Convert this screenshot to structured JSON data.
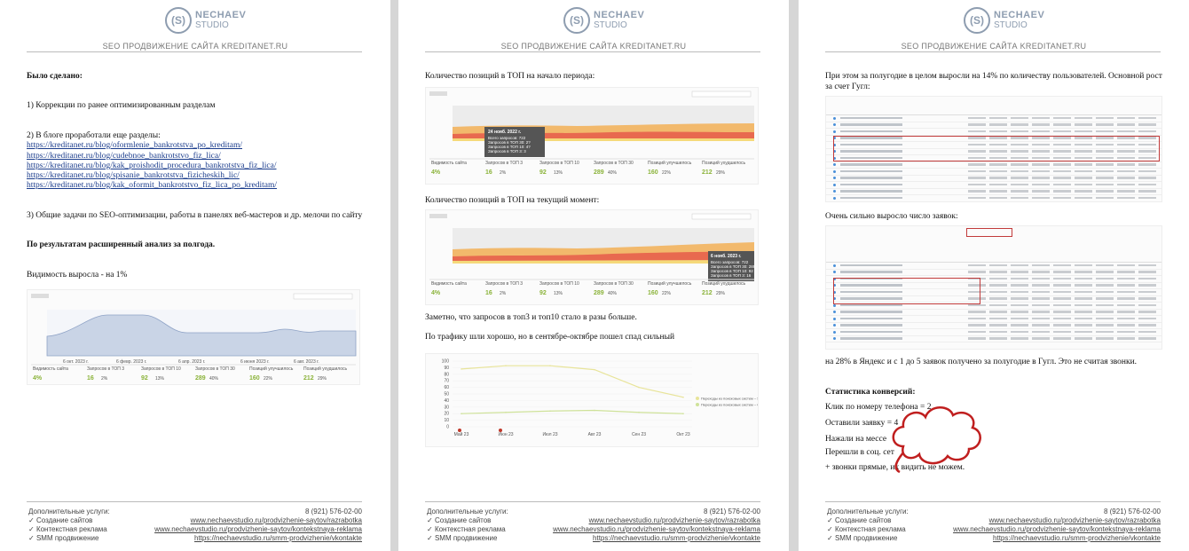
{
  "brand": {
    "logo_mark": "(S)",
    "logo_line1": "NECHAEV",
    "logo_line2": "STUDIO",
    "header": "SEO ПРОДВИЖЕНИЕ САЙТА KREDITANET.RU"
  },
  "footer": {
    "label": "Дополнительные услуги:",
    "phone": "8 (921) 576-02-00",
    "items": [
      {
        "check": "✓",
        "label": "Создание сайтов",
        "url": "www.nechaevstudio.ru/prodvizhenie-saytov/razrabotka"
      },
      {
        "check": "✓",
        "label": "Контекстная реклама",
        "url": "www.nechaevstudio.ru/prodvizhenie-saytov/kontekstnaya-reklama"
      },
      {
        "check": "✓",
        "label": "SMM продвижение",
        "url": "https://nechaevstudio.ru/smm-prodvizhenie/vkontakte"
      }
    ]
  },
  "metrics": {
    "labels": [
      "Видимость сайта",
      "Запросов в ТОП 3",
      "Запросов в ТОП 10",
      "Запросов в ТОП 30",
      "Позиций улучшилось",
      "Позиций ухудшилось"
    ],
    "values": [
      "4%",
      "16",
      "92",
      "289",
      "160",
      "212"
    ],
    "pcts": [
      "",
      "2%",
      "13%",
      "40%",
      "22%",
      "29%"
    ]
  },
  "page1": {
    "title": "Было сделано:",
    "item1": "1) Коррекции по ранее оптимизированным разделам",
    "item2": "2) В блоге проработали еще разделы:",
    "links": [
      "https://kreditanet.ru/blog/oformlenie_bankrotstva_po_kreditam/",
      "https://kreditanet.ru/blog/cudebnoe_bankrotstvo_fiz_lica/",
      "https://kreditanet.ru/blog/kak_proishodit_procedura_bankrotstva_fiz_lica/",
      "https://kreditanet.ru/blog/spisanie_bankrotstva_fizicheskih_lic/",
      "https://kreditanet.ru/blog/kak_oformit_bankrotstvo_fiz_lica_po_kreditam/"
    ],
    "item3": "3) Общие задачи по SEO-оптимизации, работы в панелях веб-мастеров и др. мелочи по сайту",
    "analysis": "По результатам расширенный анализ за полгода.",
    "visibility": "Видимость выросла - на 1%"
  },
  "page2": {
    "top_start": "Количество позиций в ТОП на начало периода:",
    "top_now": "Количество позиций в ТОП на текущий момент:",
    "tooltip1": [
      "24 нояб. 2022 г.",
      "Всего запросов: 722",
      "Запросов в ТОП 30: 2?",
      "Запросов в ТОП 10: 4?",
      "Запросов в ТОП 3: 3"
    ],
    "tooltip2": [
      "6 нояб. 2023 г.",
      "Всего запросов: 722",
      "Запросов в ТОП 30: 289",
      "Запросов в ТОП 10: 92",
      "Запросов в ТОП 3: 16"
    ],
    "note1": "Заметно, что запросов в топ3 и топ10 стало в разы больше.",
    "note2": "По трафику шли хорошо, но в сентябре-октябре пошел спад сильный"
  },
  "page3": {
    "intro": "При этом за полугодие в целом выросли на 14% по количеству пользователей. Основной рост за счет Гугл:",
    "leads": "Очень сильно выросло число заявок:",
    "leads_note": "на 28% в Яндекс и с 1 до 5 заявок получено за полугодие в Гугл. Это не считая звонки.",
    "stats_title": "Статистика конверсий:",
    "stats": [
      "Клик по номеру телефона = 2",
      "Оставили заявку = 4",
      "Нажали на мессе",
      "Перешли в соц. сет",
      "+ звонки прямые, их    видить не можем."
    ]
  },
  "chart_data": [
    {
      "type": "line",
      "title": "",
      "series": [
        {
          "name": "Переходы из поисковых систем – Яндекс",
          "values": [
            88,
            93,
            93,
            87,
            60,
            45
          ]
        },
        {
          "name": "Переходы из поисковых систем – Google",
          "values": [
            20,
            22,
            24,
            25,
            22,
            20
          ]
        }
      ],
      "categories": [
        "Май 23",
        "Июн 23",
        "Июл 23",
        "Авг 23",
        "Сен 23",
        "Окт 23"
      ],
      "ylim": [
        0,
        100
      ],
      "legend": "right"
    }
  ],
  "colors": {
    "yandex": "#e8e49a",
    "google": "#cfe29a",
    "top30": "#f2b96c",
    "top10": "#e8694f",
    "top3": "#f5d97a",
    "visibility": "#c9d4e6"
  }
}
